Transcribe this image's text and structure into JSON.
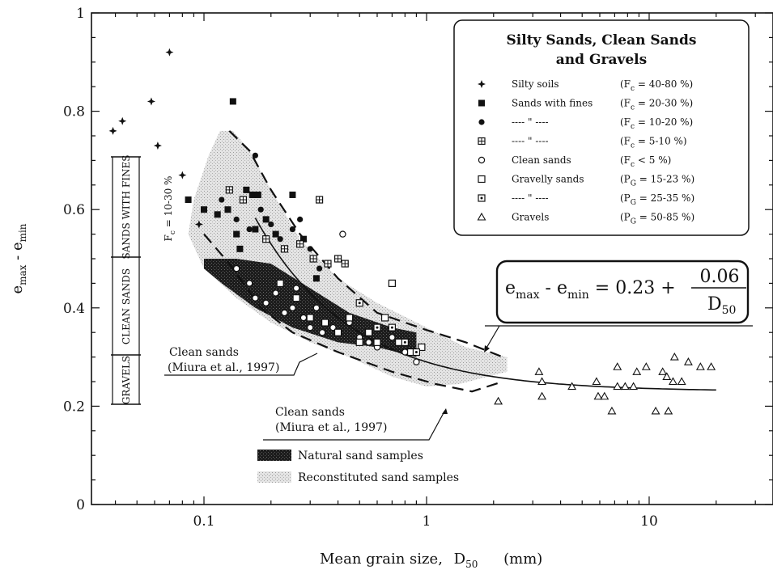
{
  "chart_data": {
    "type": "scatter",
    "x_scale": "log",
    "xlim": [
      0.035,
      60
    ],
    "ylim": [
      0,
      1
    ],
    "xlabel": "Mean grain size,",
    "xlabel_symbol": "D",
    "xlabel_sub": "50",
    "xlabel_unit": "(mm)",
    "ylabel": "e",
    "ylabel_sub1": "max",
    "ylabel_mid": " - e",
    "ylabel_sub2": "min",
    "x_ticks": [
      {
        "value": 0.1,
        "label": "0.1"
      },
      {
        "value": 1,
        "label": "1"
      },
      {
        "value": 10,
        "label": "10"
      }
    ],
    "y_ticks": [
      {
        "value": 0,
        "label": "0"
      },
      {
        "value": 0.2,
        "label": "0.2"
      },
      {
        "value": 0.4,
        "label": "0.4"
      },
      {
        "value": 0.6,
        "label": "0.6"
      },
      {
        "value": 0.8,
        "label": "0.8"
      },
      {
        "value": 1,
        "label": "1"
      }
    ],
    "legend": {
      "title_line1": "Silty Sands, Clean Sands",
      "title_line2": "and Gravels",
      "entries": [
        {
          "marker": "star",
          "label": "Silty soils",
          "range": "(F",
          "sub": "c",
          "rest": " = 40-80 %)"
        },
        {
          "marker": "square-filled",
          "label": "Sands with fines",
          "range": "(F",
          "sub": "c",
          "rest": " = 20-30 %)"
        },
        {
          "marker": "circle-filled",
          "label": "---- \" ----",
          "range": "(F",
          "sub": "c",
          "rest": " = 10-20 %)"
        },
        {
          "marker": "square-cross",
          "label": "---- \" ----",
          "range": "(F",
          "sub": "c",
          "rest": " = 5-10 %)"
        },
        {
          "marker": "circle-open",
          "label": "Clean sands",
          "range": "(F",
          "sub": "c",
          "rest": " < 5 %)"
        },
        {
          "marker": "square-open",
          "label": "Gravelly sands",
          "range": "(P",
          "sub": "G",
          "rest": " = 15-23 %)"
        },
        {
          "marker": "square-dot",
          "label": "---- \" ----",
          "range": "(P",
          "sub": "G",
          "rest": " = 25-35 %)"
        },
        {
          "marker": "triangle-open",
          "label": "Gravels",
          "range": "(P",
          "sub": "G",
          "rest": " = 50-85 %)"
        }
      ]
    },
    "equation": {
      "lhs1": "e",
      "lhs1_sub": "max",
      "lhs_mid": " - e",
      "lhs2_sub": "min",
      "rhs": " = 0.23 + ",
      "numerator": "0.06",
      "denominator": "D",
      "denominator_sub": "50",
      "curve": {
        "a": 0.23,
        "b": 0.06,
        "x_range": [
          0.17,
          20
        ]
      }
    },
    "annotations": [
      {
        "line1": "Clean sands",
        "line2": "(Miura et al., 1997)"
      },
      {
        "line1": "Clean sands",
        "line2": "(Miura et al., 1997)"
      }
    ],
    "range_labels": [
      {
        "label": "SANDS WITH FINES",
        "y_range": [
          0.5,
          0.7
        ]
      },
      {
        "label": "CLEAN SANDS",
        "y_range": [
          0.3,
          0.5
        ]
      },
      {
        "label": "GRAVELS",
        "y_range": [
          0.2,
          0.3
        ]
      }
    ],
    "range_note": {
      "text": "F",
      "sub": "c",
      "rest": " = 10-30 %"
    },
    "band_legend": [
      {
        "label": "Natural sand samples",
        "fill": "#1a1a1a"
      },
      {
        "label": "Reconstituted sand samples",
        "fill": "#cfcfcf"
      }
    ],
    "series": [
      {
        "marker": "star",
        "points": [
          [
            0.039,
            0.76
          ],
          [
            0.043,
            0.78
          ],
          [
            0.058,
            0.82
          ],
          [
            0.062,
            0.73
          ],
          [
            0.07,
            0.92
          ],
          [
            0.08,
            0.67
          ],
          [
            0.095,
            0.57
          ]
        ]
      },
      {
        "marker": "square-filled",
        "points": [
          [
            0.085,
            0.62
          ],
          [
            0.1,
            0.6
          ],
          [
            0.115,
            0.59
          ],
          [
            0.128,
            0.6
          ],
          [
            0.135,
            0.82
          ],
          [
            0.145,
            0.52
          ],
          [
            0.155,
            0.64
          ],
          [
            0.165,
            0.63
          ],
          [
            0.175,
            0.63
          ],
          [
            0.19,
            0.58
          ],
          [
            0.21,
            0.55
          ],
          [
            0.25,
            0.63
          ],
          [
            0.28,
            0.54
          ],
          [
            0.32,
            0.46
          ],
          [
            0.14,
            0.55
          ],
          [
            0.17,
            0.56
          ]
        ]
      },
      {
        "marker": "circle-filled",
        "points": [
          [
            0.12,
            0.62
          ],
          [
            0.14,
            0.58
          ],
          [
            0.16,
            0.56
          ],
          [
            0.17,
            0.71
          ],
          [
            0.18,
            0.6
          ],
          [
            0.2,
            0.57
          ],
          [
            0.22,
            0.54
          ],
          [
            0.25,
            0.56
          ],
          [
            0.27,
            0.58
          ],
          [
            0.3,
            0.52
          ],
          [
            0.33,
            0.48
          ]
        ]
      },
      {
        "marker": "square-cross",
        "points": [
          [
            0.13,
            0.64
          ],
          [
            0.15,
            0.62
          ],
          [
            0.19,
            0.54
          ],
          [
            0.23,
            0.52
          ],
          [
            0.27,
            0.53
          ],
          [
            0.33,
            0.62
          ],
          [
            0.31,
            0.5
          ],
          [
            0.36,
            0.49
          ],
          [
            0.4,
            0.5
          ],
          [
            0.43,
            0.49
          ]
        ]
      },
      {
        "marker": "circle-open",
        "points": [
          [
            0.14,
            0.48
          ],
          [
            0.16,
            0.45
          ],
          [
            0.17,
            0.42
          ],
          [
            0.19,
            0.41
          ],
          [
            0.21,
            0.43
          ],
          [
            0.23,
            0.39
          ],
          [
            0.25,
            0.4
          ],
          [
            0.28,
            0.38
          ],
          [
            0.3,
            0.36
          ],
          [
            0.34,
            0.35
          ],
          [
            0.38,
            0.36
          ],
          [
            0.42,
            0.55
          ],
          [
            0.45,
            0.37
          ],
          [
            0.5,
            0.34
          ],
          [
            0.55,
            0.33
          ],
          [
            0.6,
            0.32
          ],
          [
            0.7,
            0.34
          ],
          [
            0.8,
            0.31
          ],
          [
            0.9,
            0.29
          ],
          [
            0.26,
            0.44
          ],
          [
            0.32,
            0.4
          ]
        ]
      },
      {
        "marker": "square-open",
        "points": [
          [
            0.22,
            0.45
          ],
          [
            0.26,
            0.42
          ],
          [
            0.3,
            0.38
          ],
          [
            0.35,
            0.37
          ],
          [
            0.4,
            0.35
          ],
          [
            0.45,
            0.38
          ],
          [
            0.5,
            0.33
          ],
          [
            0.55,
            0.35
          ],
          [
            0.6,
            0.33
          ],
          [
            0.65,
            0.38
          ],
          [
            0.7,
            0.45
          ],
          [
            0.75,
            0.33
          ],
          [
            0.85,
            0.31
          ],
          [
            0.95,
            0.32
          ]
        ]
      },
      {
        "marker": "square-dot",
        "points": [
          [
            0.5,
            0.41
          ],
          [
            0.6,
            0.36
          ],
          [
            0.7,
            0.36
          ],
          [
            0.8,
            0.33
          ],
          [
            0.9,
            0.31
          ]
        ]
      },
      {
        "marker": "triangle-open",
        "points": [
          [
            2.1,
            0.21
          ],
          [
            3.2,
            0.27
          ],
          [
            3.3,
            0.25
          ],
          [
            3.3,
            0.22
          ],
          [
            4.5,
            0.24
          ],
          [
            5.8,
            0.25
          ],
          [
            5.9,
            0.22
          ],
          [
            6.3,
            0.22
          ],
          [
            6.8,
            0.19
          ],
          [
            7.2,
            0.24
          ],
          [
            7.2,
            0.28
          ],
          [
            7.8,
            0.24
          ],
          [
            8.5,
            0.24
          ],
          [
            8.8,
            0.27
          ],
          [
            9.7,
            0.28
          ],
          [
            10.7,
            0.19
          ],
          [
            11.5,
            0.27
          ],
          [
            12,
            0.26
          ],
          [
            12.2,
            0.19
          ],
          [
            12.8,
            0.25
          ],
          [
            13,
            0.3
          ],
          [
            14,
            0.25
          ],
          [
            15,
            0.29
          ],
          [
            17,
            0.28
          ],
          [
            19,
            0.28
          ]
        ]
      }
    ]
  }
}
